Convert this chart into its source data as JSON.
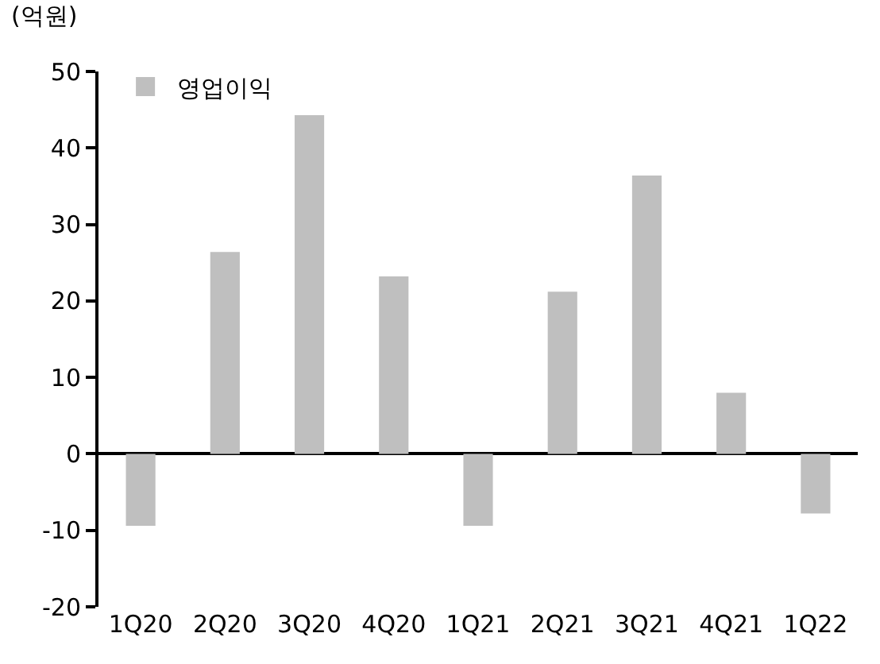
{
  "chart_data": {
    "type": "bar",
    "ylabel": "(억원)",
    "categories": [
      "1Q20",
      "2Q20",
      "3Q20",
      "4Q20",
      "1Q21",
      "2Q21",
      "3Q21",
      "4Q21",
      "1Q22"
    ],
    "series": [
      {
        "name": "영업이익",
        "color": "#bfbfbf",
        "values": [
          -9.4,
          26.4,
          44.3,
          23.2,
          -9.4,
          21.2,
          36.4,
          8.0,
          -7.8
        ]
      }
    ],
    "ylim": [
      -20,
      50
    ],
    "yticks": [
      -20,
      -10,
      0,
      10,
      20,
      30,
      40,
      50
    ],
    "legend": "top left"
  }
}
